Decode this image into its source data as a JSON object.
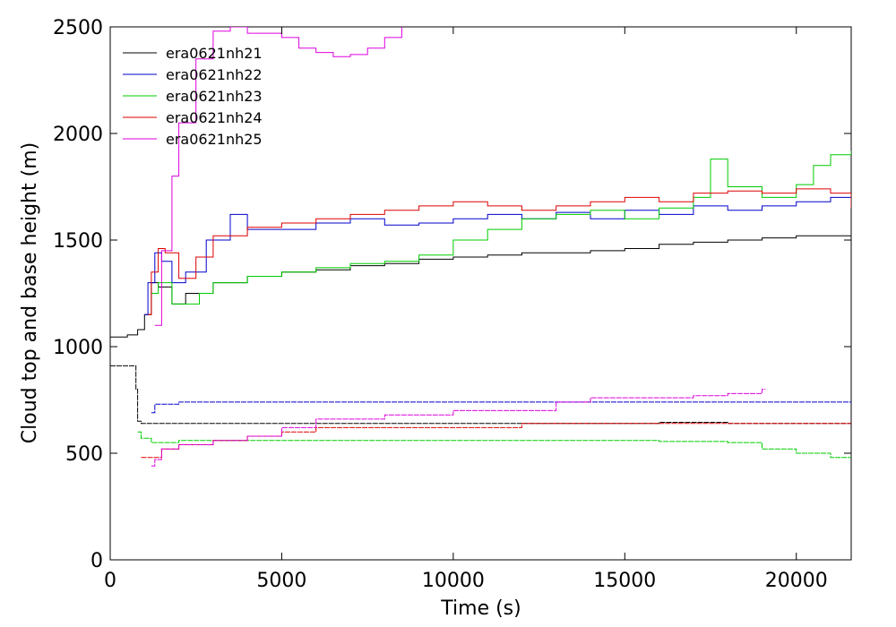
{
  "chart_data": {
    "type": "line",
    "title": "",
    "xlabel": "Time (s)",
    "ylabel": "Cloud top and base height (m)",
    "xlim": [
      0,
      21600
    ],
    "ylim": [
      0,
      2500
    ],
    "x_ticks": [
      0,
      5000,
      10000,
      15000,
      20000
    ],
    "y_ticks": [
      0,
      500,
      1000,
      1500,
      2000,
      2500
    ],
    "x_tick_labels": [
      "0",
      "5000",
      "10000",
      "15000",
      "20000"
    ],
    "y_tick_labels": [
      "0",
      "500",
      "1000",
      "1500",
      "2000",
      "2500"
    ],
    "grid": false,
    "legend_position": "top-left",
    "series": [
      {
        "name": "era0621nh21",
        "color": "#000000",
        "top": {
          "x": [
            0,
            500,
            800,
            1000,
            1200,
            1400,
            1800,
            2200,
            3000,
            4000,
            5000,
            6000,
            7000,
            8000,
            9000,
            10000,
            11000,
            12000,
            13000,
            14000,
            15000,
            16000,
            17000,
            18000,
            19000,
            20000,
            21000,
            21600
          ],
          "y": [
            1045,
            1055,
            1080,
            1150,
            1300,
            1280,
            1200,
            1250,
            1300,
            1330,
            1350,
            1360,
            1380,
            1390,
            1410,
            1420,
            1430,
            1440,
            1440,
            1450,
            1460,
            1480,
            1490,
            1500,
            1510,
            1520,
            1520,
            1520
          ]
        },
        "base": {
          "x": [
            0,
            700,
            750,
            800,
            900,
            1200,
            2000,
            4000,
            6000,
            8000,
            10000,
            12000,
            14000,
            16000,
            18000,
            20000,
            21600
          ],
          "y": [
            910,
            910,
            800,
            650,
            640,
            640,
            640,
            640,
            640,
            640,
            640,
            640,
            640,
            645,
            640,
            640,
            640
          ]
        }
      },
      {
        "name": "era0621nh22",
        "color": "#0000cc",
        "top": {
          "x": [
            1000,
            1100,
            1300,
            1500,
            1800,
            2200,
            2800,
            3500,
            4000,
            5000,
            6000,
            7000,
            8000,
            9000,
            10000,
            11000,
            12000,
            13000,
            14000,
            15000,
            16000,
            17000,
            18000,
            19000,
            20000,
            21000,
            21600
          ],
          "y": [
            1150,
            1300,
            1440,
            1400,
            1300,
            1350,
            1500,
            1620,
            1550,
            1550,
            1580,
            1600,
            1570,
            1580,
            1600,
            1620,
            1600,
            1630,
            1600,
            1640,
            1620,
            1660,
            1640,
            1660,
            1680,
            1700,
            1700
          ]
        },
        "base": {
          "x": [
            1200,
            1300,
            2000,
            4000,
            6000,
            8000,
            10000,
            12000,
            14000,
            16000,
            18000,
            20000,
            21600
          ],
          "y": [
            690,
            730,
            740,
            740,
            740,
            740,
            740,
            740,
            740,
            740,
            740,
            740,
            730
          ]
        }
      },
      {
        "name": "era0621nh23",
        "color": "#00cc00",
        "top": {
          "x": [
            1200,
            1400,
            1800,
            2200,
            2600,
            3000,
            4000,
            5000,
            6000,
            7000,
            8000,
            9000,
            10000,
            11000,
            12000,
            13000,
            14000,
            15000,
            16000,
            17000,
            17500,
            18000,
            19000,
            20000,
            20500,
            21000,
            21600
          ],
          "y": [
            1250,
            1300,
            1200,
            1200,
            1250,
            1300,
            1330,
            1350,
            1370,
            1390,
            1400,
            1430,
            1500,
            1550,
            1600,
            1620,
            1640,
            1600,
            1650,
            1700,
            1880,
            1750,
            1700,
            1760,
            1850,
            1900,
            1920
          ]
        },
        "base": {
          "x": [
            800,
            900,
            1200,
            2000,
            3000,
            4000,
            6000,
            8000,
            10000,
            12000,
            14000,
            16000,
            18000,
            19000,
            20000,
            21000,
            21600
          ],
          "y": [
            600,
            570,
            550,
            560,
            560,
            560,
            560,
            560,
            560,
            560,
            560,
            555,
            550,
            520,
            500,
            480,
            480
          ]
        }
      },
      {
        "name": "era0621nh24",
        "color": "#dd0000",
        "top": {
          "x": [
            1100,
            1200,
            1400,
            1600,
            2000,
            2500,
            3000,
            4000,
            5000,
            6000,
            7000,
            8000,
            9000,
            10000,
            11000,
            12000,
            13000,
            14000,
            15000,
            16000,
            17000,
            18000,
            19000,
            20000,
            21000,
            21600
          ],
          "y": [
            1150,
            1350,
            1460,
            1440,
            1320,
            1420,
            1520,
            1560,
            1580,
            1600,
            1620,
            1640,
            1660,
            1680,
            1660,
            1640,
            1660,
            1680,
            1700,
            1680,
            1720,
            1730,
            1720,
            1740,
            1720,
            1650
          ]
        },
        "base": {
          "x": [
            900,
            1000,
            1500,
            2000,
            3000,
            4000,
            5000,
            6000,
            8000,
            10000,
            12000,
            14000,
            16000,
            18000,
            20000,
            21600
          ],
          "y": [
            480,
            480,
            520,
            540,
            560,
            580,
            600,
            620,
            620,
            620,
            640,
            640,
            640,
            640,
            640,
            640
          ]
        }
      },
      {
        "name": "era0621nh25",
        "color": "#dd00dd",
        "top": {
          "x": [
            1300,
            1500,
            1800,
            2000,
            2500,
            3000,
            3500,
            4000,
            5000,
            5500,
            6000,
            6500,
            7000,
            7500,
            8000,
            8500
          ],
          "y": [
            1100,
            1450,
            1800,
            2050,
            2350,
            2480,
            2500,
            2470,
            2450,
            2400,
            2380,
            2360,
            2370,
            2400,
            2450,
            2500
          ]
        },
        "base": {
          "x": [
            1200,
            1300,
            1500,
            2000,
            3000,
            4000,
            5000,
            6000,
            8000,
            10000,
            12000,
            13000,
            14000,
            15000,
            16000,
            17000,
            18000,
            19000,
            19100
          ],
          "y": [
            440,
            470,
            520,
            540,
            560,
            580,
            620,
            660,
            680,
            700,
            700,
            740,
            760,
            760,
            760,
            770,
            780,
            800,
            800
          ]
        }
      }
    ]
  }
}
